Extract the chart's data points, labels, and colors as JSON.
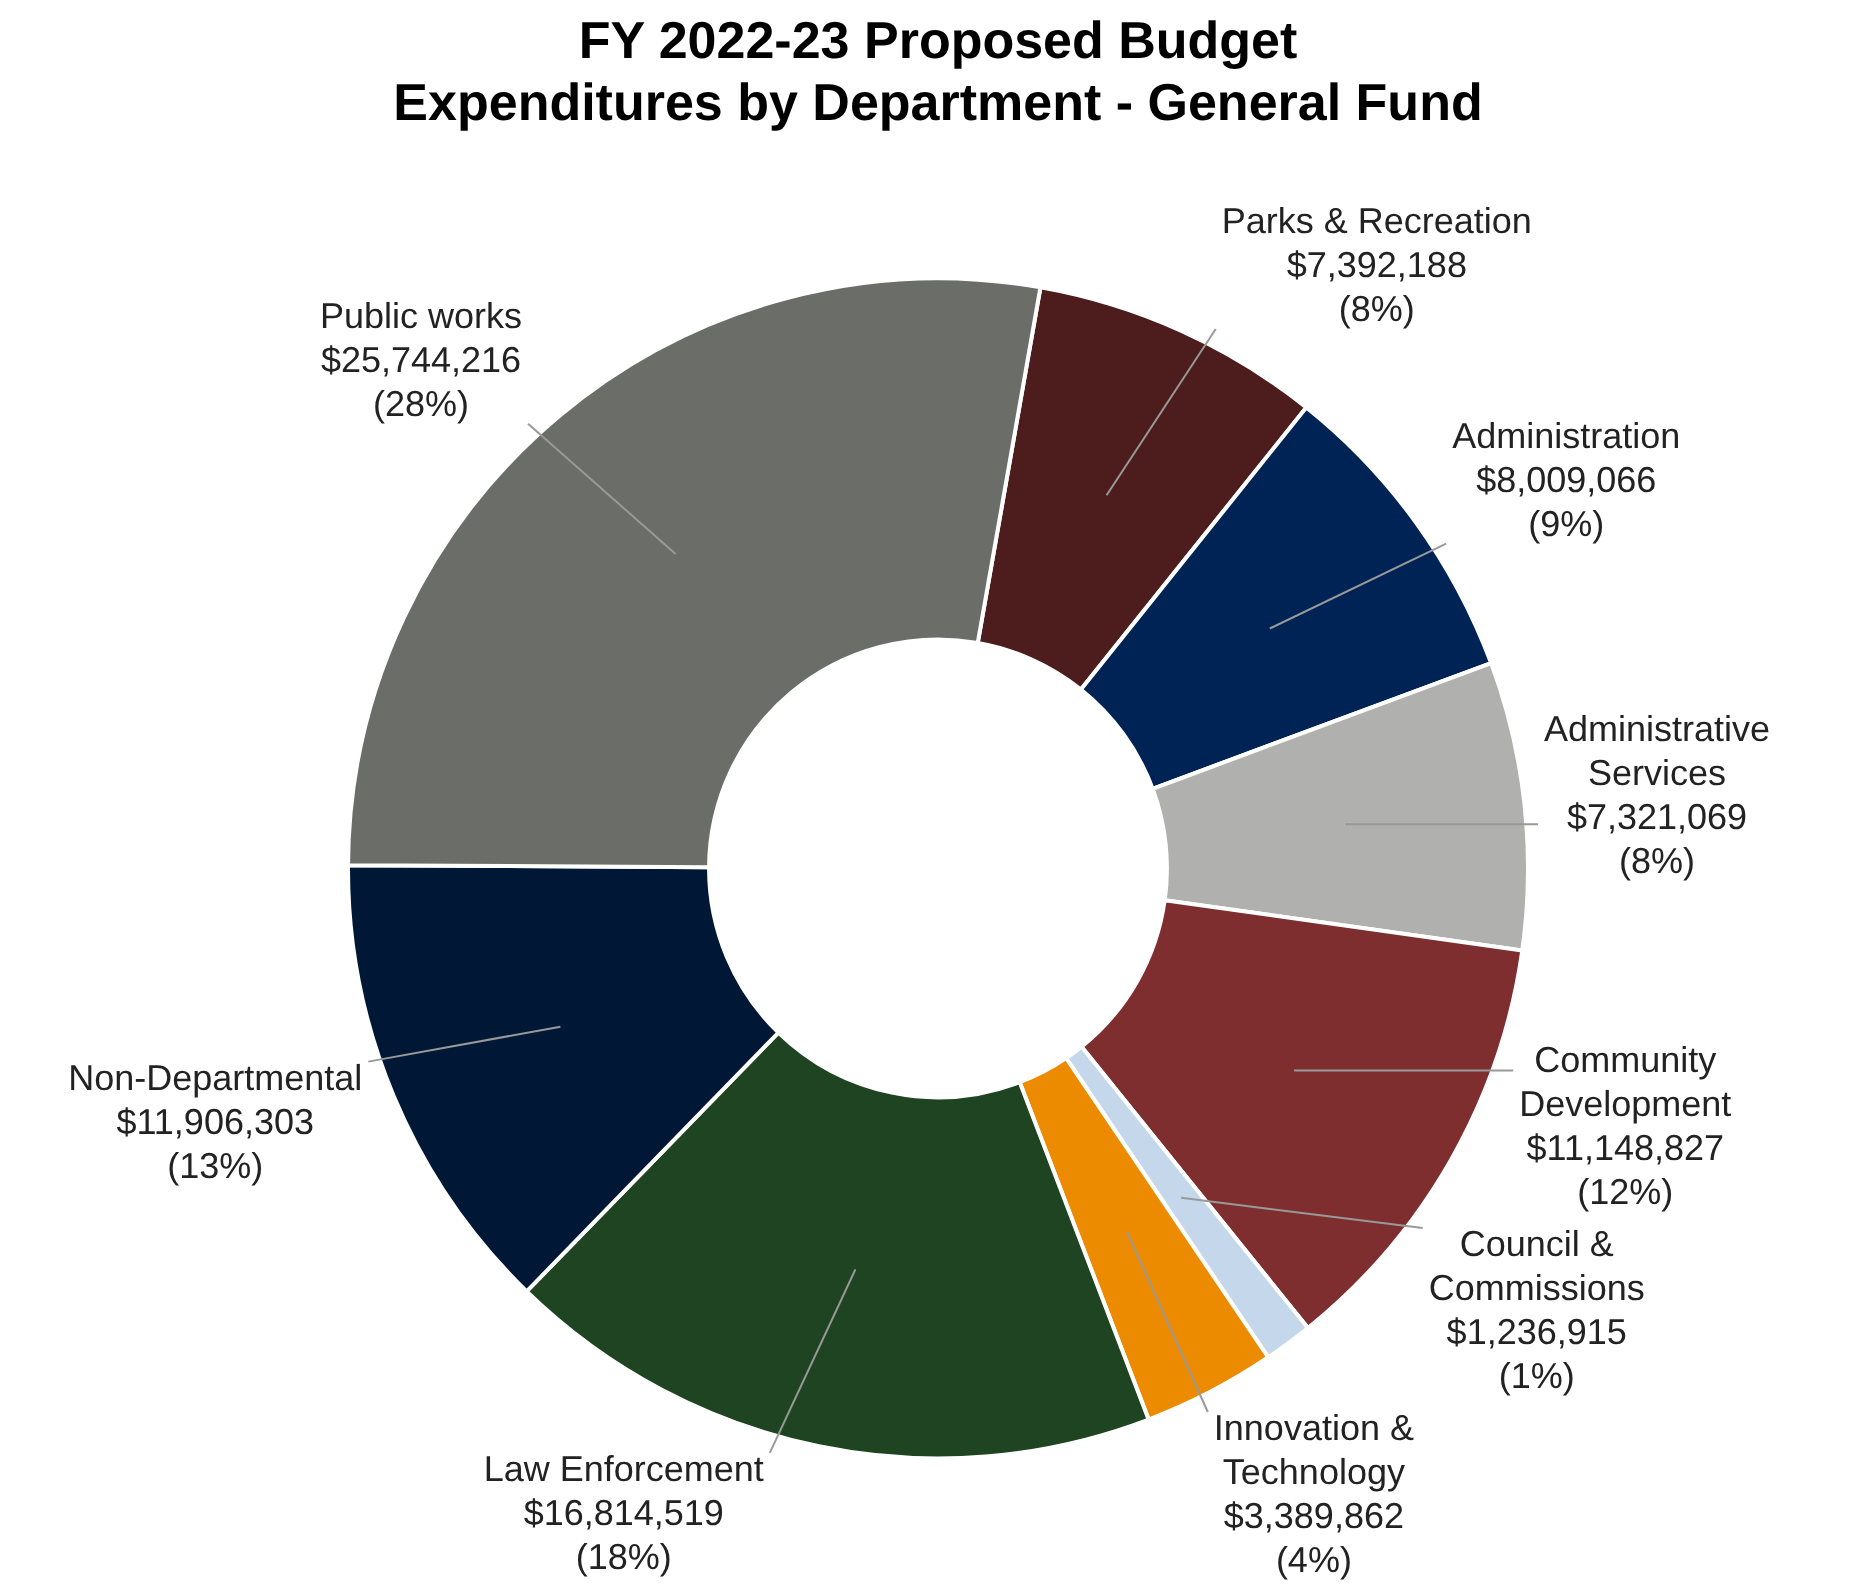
{
  "chart_data": {
    "type": "donut",
    "title": "FY 2022-23 Proposed Budget\nExpenditures by Department - General Fund",
    "categories": [
      "Parks & Recreation",
      "Administration",
      "Administrative Services",
      "Community Development",
      "Council & Commissions",
      "Innovation & Technology",
      "Law Enforcement",
      "Non-Departmental",
      "Public works"
    ],
    "values": [
      7392188,
      8009066,
      7321069,
      11148827,
      1236915,
      3389862,
      16814519,
      11906303,
      25744216
    ],
    "colors": [
      "#4d1c1c",
      "#002355",
      "#b0b1ae",
      "#7e2e2e",
      "#c5d7ea",
      "#ed8b00",
      "#1f4421",
      "#001835",
      "#6b6d69"
    ],
    "value_labels": [
      "$7,392,188\n(8%)",
      "$8,009,066\n(9%)",
      "$7,321,069\n(8%)",
      "$11,148,827\n(12%)",
      "$1,236,915\n(1%)",
      "$3,389,862\n(4%)",
      "$16,814,519\n(18%)",
      "$11,906,303\n(13%)",
      "$25,744,216\n(28%)"
    ],
    "legend": false
  }
}
